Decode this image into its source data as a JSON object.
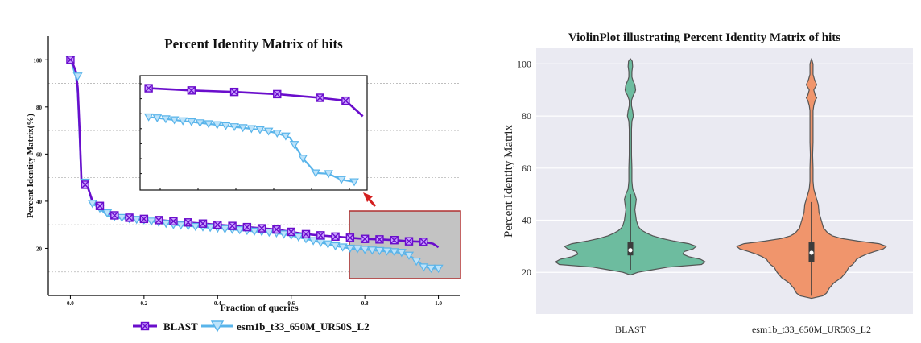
{
  "chart_data": [
    {
      "type": "line",
      "title": "Percent Identity Matrix of hits",
      "xlabel": "Fraction of queries",
      "ylabel": "Percent Identity Matrix(%)",
      "xlim": [
        -0.06,
        1.06
      ],
      "ylim": [
        0,
        110
      ],
      "x_ticks": [
        "0.0",
        "0.2",
        "0.4",
        "0.6",
        "0.8",
        "1.0"
      ],
      "y_ticks": [
        "20",
        "40",
        "60",
        "80",
        "100"
      ],
      "grid": "dashed horizontal",
      "legend": "bottom",
      "series": [
        {
          "name": "BLAST",
          "color": "#6a0dcc",
          "marker": "square-x",
          "x": [
            0.0,
            0.005,
            0.015,
            0.02,
            0.025,
            0.03,
            0.045,
            0.06,
            0.08,
            0.1,
            0.125,
            0.16,
            0.2,
            0.24,
            0.28,
            0.32,
            0.36,
            0.4,
            0.44,
            0.48,
            0.52,
            0.56,
            0.6,
            0.64,
            0.68,
            0.72,
            0.76,
            0.8,
            0.84,
            0.88,
            0.92,
            0.96,
            0.985,
            1.0
          ],
          "y": [
            100,
            99,
            95,
            88,
            70,
            49,
            47,
            40,
            38,
            35,
            34,
            33,
            32.5,
            32,
            31.5,
            31,
            30.5,
            30,
            29.5,
            29,
            28.5,
            28,
            27,
            26,
            25.5,
            25,
            24.5,
            24,
            23.8,
            23.5,
            23,
            22.8,
            22,
            20.5
          ],
          "marker_x": [
            0.0,
            0.04,
            0.08,
            0.12,
            0.16,
            0.2,
            0.24,
            0.28,
            0.32,
            0.36,
            0.4,
            0.44,
            0.48,
            0.52,
            0.56,
            0.6,
            0.64,
            0.68,
            0.72,
            0.76,
            0.8,
            0.84,
            0.88,
            0.92,
            0.96
          ],
          "marker_y": [
            100,
            47,
            38,
            34,
            33,
            32.5,
            32,
            31.5,
            31,
            30.5,
            30,
            29.5,
            29,
            28.5,
            28,
            27,
            26,
            25.5,
            25,
            24.5,
            24,
            23.8,
            23.5,
            23,
            22.8
          ]
        },
        {
          "name": "esm1b_t33_650M_UR50S_L2",
          "color": "#59b4ea",
          "marker": "triangle-down",
          "x": [
            0.0,
            0.005,
            0.015,
            0.02,
            0.025,
            0.03,
            0.045,
            0.06,
            0.08,
            0.1,
            0.125,
            0.16,
            0.2,
            0.24,
            0.28,
            0.32,
            0.36,
            0.4,
            0.44,
            0.48,
            0.52,
            0.56,
            0.6,
            0.64,
            0.68,
            0.72,
            0.76,
            0.8,
            0.84,
            0.88,
            0.9,
            0.92,
            0.94,
            0.955,
            0.97,
            0.985,
            1.0
          ],
          "y": [
            100,
            98,
            93,
            86,
            68,
            49,
            48,
            39,
            37,
            34,
            33,
            32.5,
            32,
            31,
            30,
            29.5,
            29,
            28.5,
            28,
            27.5,
            27,
            26.5,
            25.5,
            24,
            22.5,
            21,
            20,
            19.5,
            19,
            18.5,
            18,
            17,
            15,
            13,
            12,
            11.5,
            11.5
          ],
          "marker_x": [
            0.0,
            0.02,
            0.04,
            0.06,
            0.08,
            0.1,
            0.12,
            0.14,
            0.16,
            0.18,
            0.2,
            0.22,
            0.24,
            0.26,
            0.28,
            0.3,
            0.32,
            0.34,
            0.36,
            0.38,
            0.4,
            0.42,
            0.44,
            0.46,
            0.48,
            0.5,
            0.52,
            0.54,
            0.56,
            0.58,
            0.6,
            0.62,
            0.64,
            0.66,
            0.68,
            0.7,
            0.72,
            0.74,
            0.76,
            0.78,
            0.8,
            0.82,
            0.84,
            0.86,
            0.88,
            0.9,
            0.92,
            0.94,
            0.96,
            0.98,
            1.0
          ],
          "marker_y": [
            100,
            93,
            48,
            39,
            37,
            35,
            33.5,
            33,
            32.5,
            32.2,
            32,
            31.5,
            31,
            30.5,
            30,
            29.8,
            29.5,
            29.2,
            29,
            28.8,
            28.5,
            28.2,
            28,
            27.8,
            27.5,
            27.2,
            27,
            26.8,
            26.5,
            26,
            25.5,
            24.8,
            24,
            23.2,
            22.5,
            21.8,
            21,
            20.5,
            20,
            19.8,
            19.5,
            19.2,
            19,
            18.8,
            18.5,
            18.2,
            17,
            14.5,
            12,
            11.5,
            11.5
          ]
        }
      ],
      "inset": {
        "series": [
          {
            "name": "BLAST",
            "x": [
              0.75,
              0.8,
              0.85,
              0.9,
              0.95,
              0.98,
              1.0
            ],
            "y": [
              24.3,
              24,
              23.8,
              23.5,
              23,
              22.6,
              20.5
            ],
            "marker_x": [
              0.75,
              0.8,
              0.85,
              0.9,
              0.95,
              0.98
            ]
          },
          {
            "name": "esm1b_t33_650M_UR50S_L2",
            "x": [
              0.75,
              0.765,
              0.78,
              0.795,
              0.81,
              0.825,
              0.84,
              0.855,
              0.87,
              0.885,
              0.9,
              0.915,
              0.93,
              0.945,
              0.96,
              0.975,
              0.99
            ],
            "y": [
              20.4,
              20.2,
              20,
              19.8,
              19.6,
              19.4,
              19.2,
              19,
              18.8,
              18.6,
              18.2,
              17.6,
              14.8,
              12.8,
              12.7,
              11.9,
              11.6
            ],
            "marker_x": [
              0.75,
              0.76,
              0.77,
              0.78,
              0.79,
              0.8,
              0.81,
              0.82,
              0.83,
              0.84,
              0.85,
              0.86,
              0.87,
              0.88,
              0.89,
              0.9,
              0.91,
              0.92,
              0.93,
              0.945,
              0.96,
              0.975,
              0.99
            ]
          }
        ]
      }
    },
    {
      "type": "violin",
      "title": "ViolinPlot illustrating Percent Identity Matrix of hits",
      "ylabel": "Percent Identity Matrix",
      "categories": [
        "BLAST",
        "esm1b_t33_650M_UR50S_L2"
      ],
      "y_ticks": [
        "20",
        "40",
        "60",
        "80",
        "100"
      ],
      "ylim": [
        4,
        106
      ],
      "violins": [
        {
          "name": "BLAST",
          "color": "#6dbc9f",
          "min": 21,
          "q1": 26.5,
          "median": 28.5,
          "q3": 31.5,
          "whisker_high": 50,
          "max": 102,
          "density_y": [
            19,
            20,
            21,
            22,
            23,
            24,
            25,
            26,
            27,
            28,
            29,
            30,
            31,
            32,
            33,
            34,
            35,
            36,
            37,
            38,
            40,
            42,
            44,
            46,
            48,
            50,
            52,
            55,
            60,
            65,
            70,
            75,
            78,
            80,
            82,
            84,
            86,
            88,
            89,
            90,
            92,
            94,
            95,
            97,
            99,
            101,
            102
          ],
          "density_w": [
            0.0,
            0.1,
            0.3,
            0.5,
            0.95,
            1.0,
            0.94,
            0.78,
            0.7,
            0.72,
            0.84,
            0.88,
            0.78,
            0.58,
            0.42,
            0.3,
            0.22,
            0.16,
            0.12,
            0.1,
            0.08,
            0.07,
            0.06,
            0.07,
            0.08,
            0.06,
            0.03,
            0.02,
            0.02,
            0.015,
            0.015,
            0.015,
            0.02,
            0.04,
            0.03,
            0.015,
            0.015,
            0.04,
            0.06,
            0.07,
            0.06,
            0.03,
            0.02,
            0.02,
            0.03,
            0.025,
            0.0
          ]
        },
        {
          "name": "esm1b_t33_650M_UR50S_L2",
          "color": "#f0956c",
          "min": 11,
          "q1": 24,
          "median": 27.5,
          "q3": 31.5,
          "whisker_high": 47,
          "max": 102,
          "density_y": [
            10,
            11,
            12,
            14,
            16,
            18,
            20,
            22,
            23,
            24,
            25,
            26,
            27,
            28,
            29,
            30,
            31,
            32,
            33,
            34,
            35,
            37,
            40,
            43,
            46,
            48,
            50,
            52,
            55,
            60,
            65,
            70,
            75,
            80,
            82,
            84,
            86,
            87,
            88,
            90,
            91,
            92,
            94,
            96,
            98,
            100,
            102
          ],
          "density_w": [
            0.0,
            0.15,
            0.2,
            0.24,
            0.3,
            0.4,
            0.46,
            0.5,
            0.55,
            0.58,
            0.6,
            0.66,
            0.74,
            0.84,
            0.96,
            1.0,
            0.9,
            0.62,
            0.4,
            0.28,
            0.22,
            0.16,
            0.13,
            0.1,
            0.09,
            0.07,
            0.05,
            0.03,
            0.02,
            0.02,
            0.015,
            0.02,
            0.02,
            0.02,
            0.02,
            0.03,
            0.05,
            0.07,
            0.05,
            0.03,
            0.05,
            0.07,
            0.04,
            0.02,
            0.02,
            0.02,
            0.0
          ]
        }
      ]
    }
  ]
}
